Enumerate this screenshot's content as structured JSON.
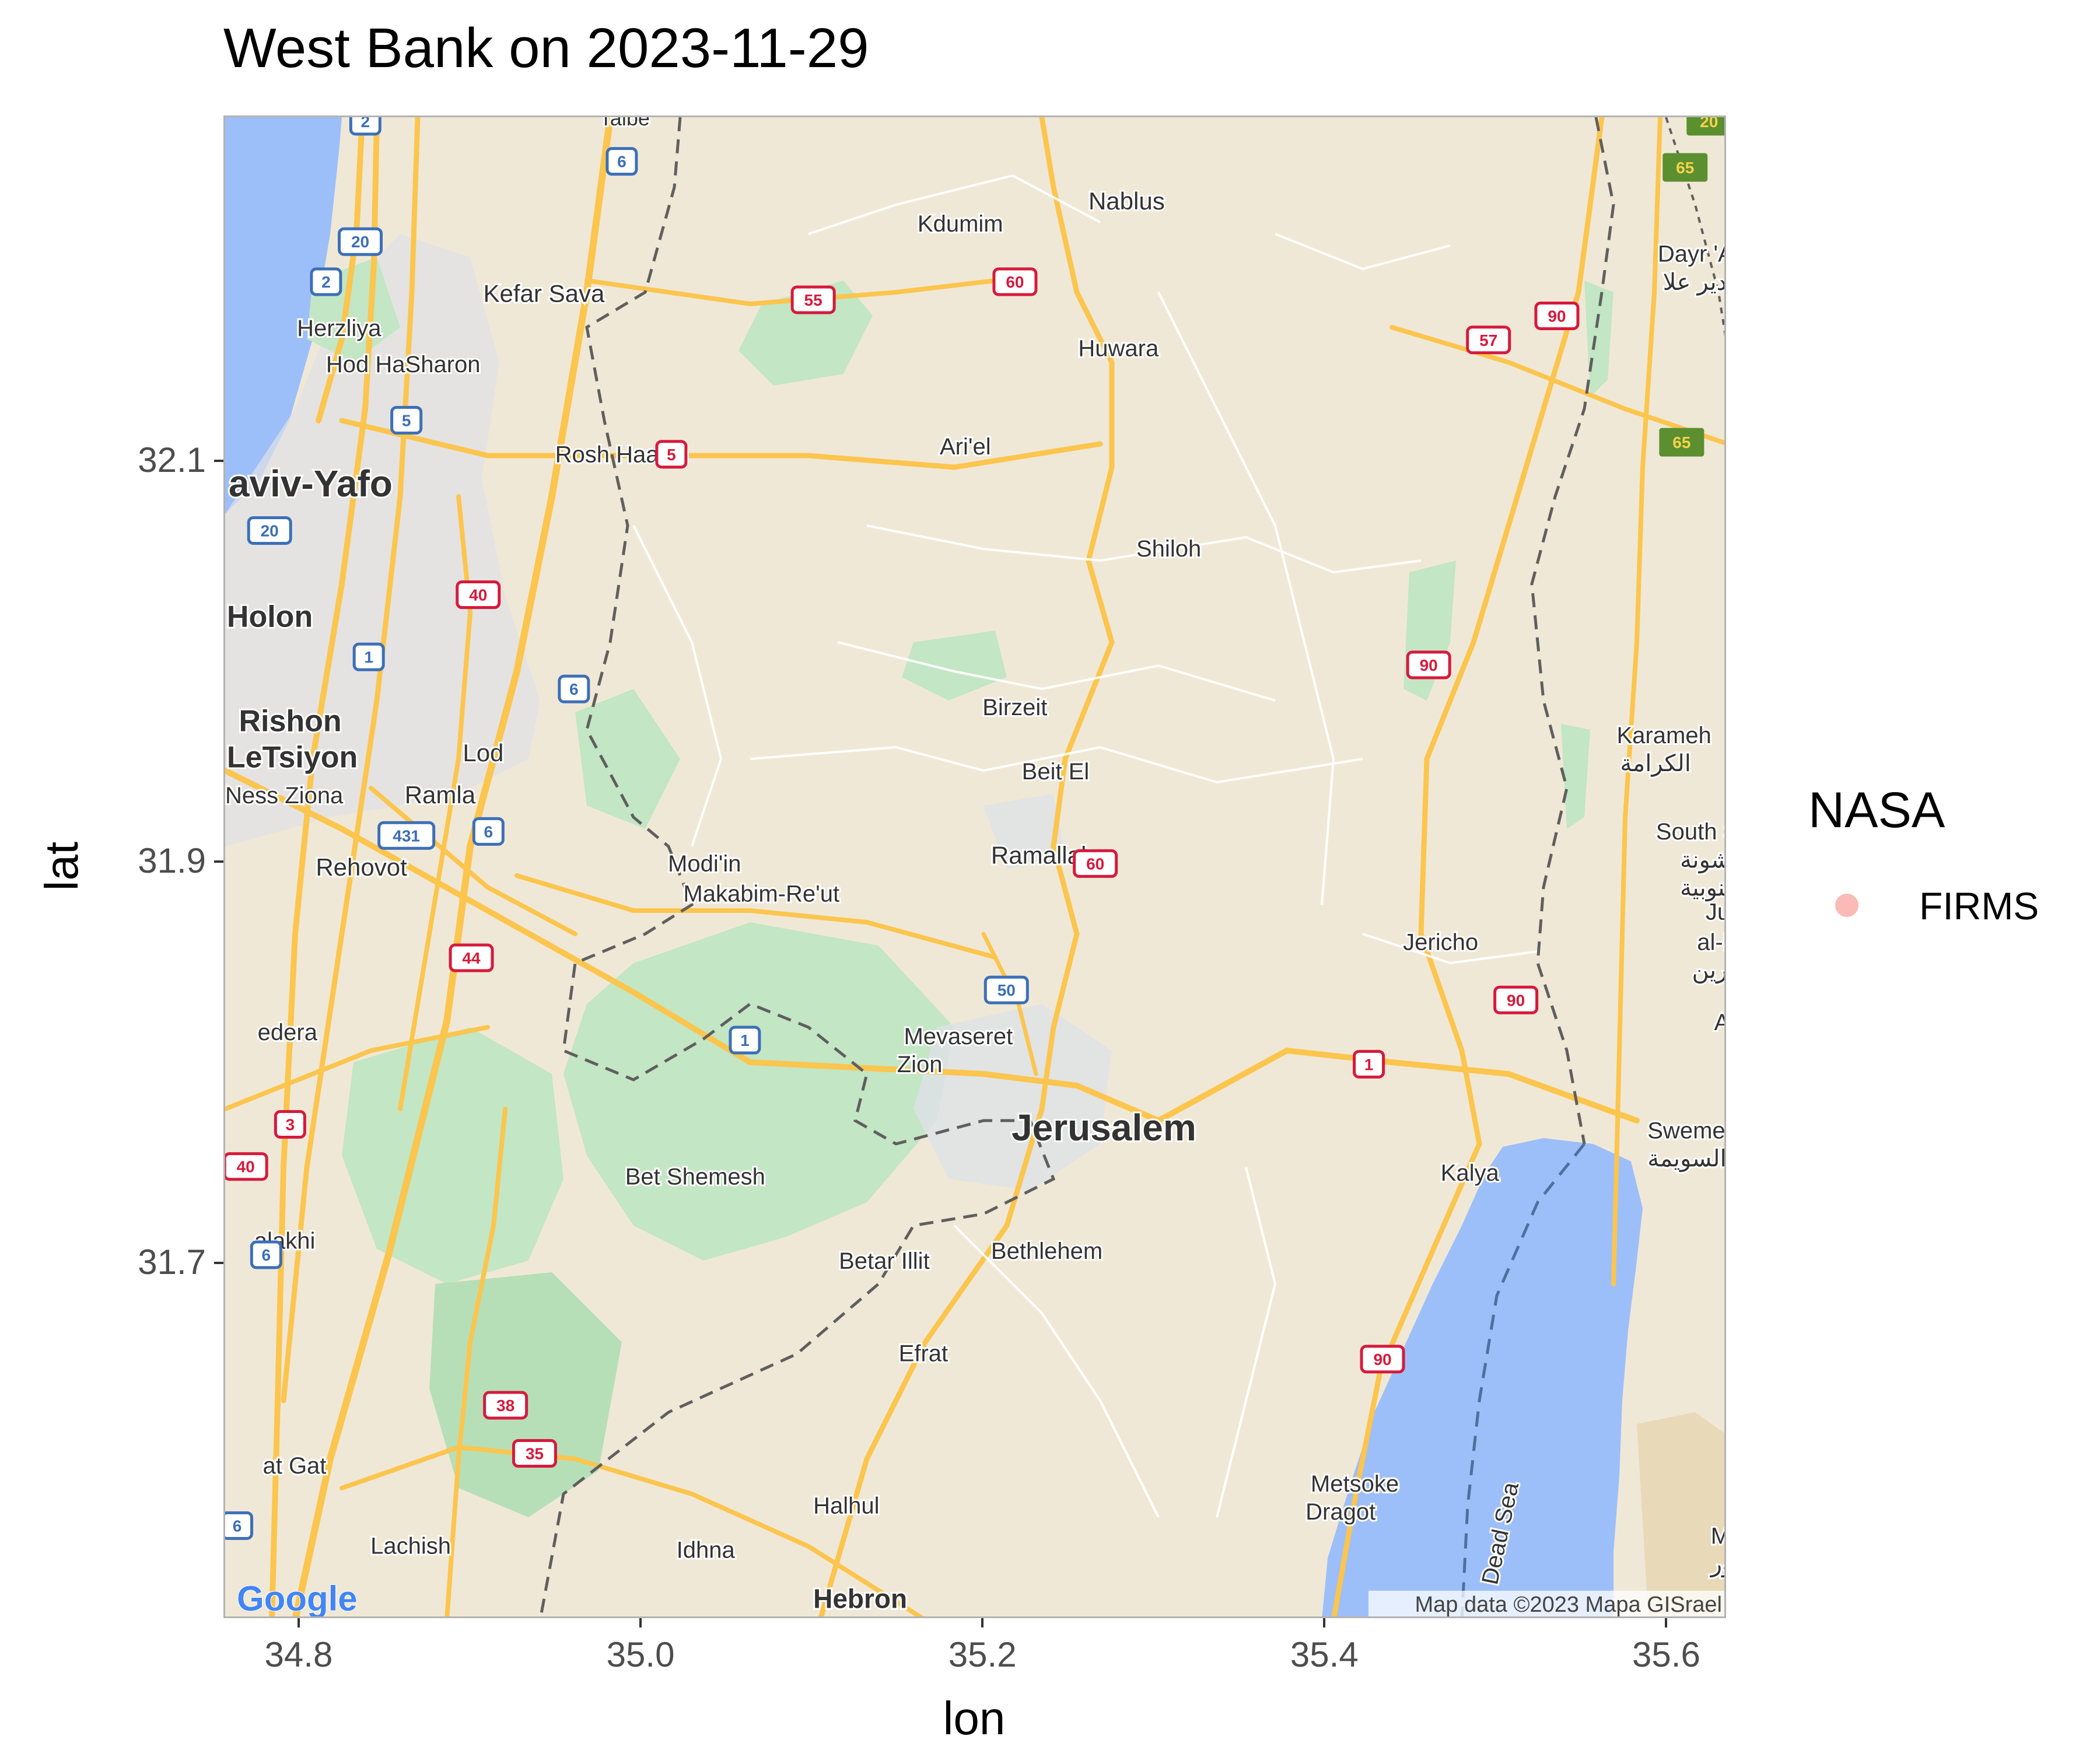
{
  "title": "West Bank on 2023-11-29",
  "axes": {
    "x_title": "lon",
    "y_title": "lat",
    "x_ticks": [
      "34.8",
      "35.0",
      "35.2",
      "35.4",
      "35.6"
    ],
    "x_tick_values": [
      34.8,
      35.0,
      35.2,
      35.4,
      35.6
    ],
    "y_ticks": [
      "32.1",
      "31.9",
      "31.7"
    ],
    "y_tick_values": [
      32.1,
      31.9,
      31.7
    ],
    "xlim": [
      34.756,
      35.635
    ],
    "ylim": [
      31.523,
      32.272
    ]
  },
  "legend": {
    "title": "NASA",
    "items": [
      {
        "label": "FIRMS",
        "color": "#f8766d"
      }
    ]
  },
  "map": {
    "attribution": "Map data ©2023 Mapa GISrael",
    "logo": "Google",
    "colors": {
      "land": "#f0e8d6",
      "water": "#9dbff9",
      "park": "#c3e6c5",
      "road": "#fbc54e",
      "urban": "#dfe1e6"
    },
    "places": [
      {
        "name": "Taibe",
        "lon": 34.975,
        "lat": 32.268,
        "size": 36
      },
      {
        "name": "Kdumim",
        "lon": 35.161,
        "lat": 32.215,
        "size": 40
      },
      {
        "name": "Nablus",
        "lon": 35.261,
        "lat": 32.226,
        "size": 42
      },
      {
        "name": "Dayr 'Al",
        "lon": 35.594,
        "lat": 32.2,
        "size": 40
      },
      {
        "name": "دير علا",
        "lon": 35.597,
        "lat": 32.186,
        "size": 40
      },
      {
        "name": "Kefar Sava",
        "lon": 34.907,
        "lat": 32.18,
        "size": 42
      },
      {
        "name": "Herzliya",
        "lon": 34.798,
        "lat": 32.163,
        "size": 40
      },
      {
        "name": "Huwara",
        "lon": 35.255,
        "lat": 32.153,
        "size": 40
      },
      {
        "name": "Hod HaSharon",
        "lon": 34.815,
        "lat": 32.145,
        "size": 40
      },
      {
        "name": "Rosh Haayin",
        "lon": 34.949,
        "lat": 32.1,
        "size": 40
      },
      {
        "name": "Ari'el",
        "lon": 35.174,
        "lat": 32.104,
        "size": 40
      },
      {
        "name": "aviv-Yafo",
        "lon": 34.758,
        "lat": 32.083,
        "size": 64,
        "bold": true
      },
      {
        "name": "Shiloh",
        "lon": 35.289,
        "lat": 32.053,
        "size": 40
      },
      {
        "name": "Holon",
        "lon": 34.757,
        "lat": 32.018,
        "size": 52,
        "bold": true
      },
      {
        "name": "Birzeit",
        "lon": 35.199,
        "lat": 31.974,
        "size": 40
      },
      {
        "name": "Rishon",
        "lon": 34.764,
        "lat": 31.966,
        "size": 52,
        "bold": true
      },
      {
        "name": "Karameh",
        "lon": 35.57,
        "lat": 31.96,
        "size": 40
      },
      {
        "name": "LeTsiyon",
        "lon": 34.757,
        "lat": 31.948,
        "size": 52,
        "bold": true
      },
      {
        "name": "الكرامة",
        "lon": 35.572,
        "lat": 31.946,
        "size": 40
      },
      {
        "name": "Lod",
        "lon": 34.895,
        "lat": 31.951,
        "size": 42
      },
      {
        "name": "Beit El",
        "lon": 35.222,
        "lat": 31.942,
        "size": 40
      },
      {
        "name": "Ness Ziona",
        "lon": 34.756,
        "lat": 31.93,
        "size": 40
      },
      {
        "name": "Ramla",
        "lon": 34.861,
        "lat": 31.93,
        "size": 42
      },
      {
        "name": "South Shu",
        "lon": 35.593,
        "lat": 31.912,
        "size": 40
      },
      {
        "name": "الشونة",
        "lon": 35.607,
        "lat": 31.898,
        "size": 40
      },
      {
        "name": "الجنوبية",
        "lon": 35.607,
        "lat": 31.884,
        "size": 40
      },
      {
        "name": "Ramallah",
        "lon": 35.204,
        "lat": 31.9,
        "size": 42
      },
      {
        "name": "Rehovot",
        "lon": 34.809,
        "lat": 31.894,
        "size": 42
      },
      {
        "name": "Modi'in",
        "lon": 35.015,
        "lat": 31.896,
        "size": 40
      },
      {
        "name": "Makabim-Re'ut",
        "lon": 35.024,
        "lat": 31.881,
        "size": 40
      },
      {
        "name": "Juw",
        "lon": 35.622,
        "lat": 31.872,
        "size": 40
      },
      {
        "name": "al-Ka",
        "lon": 35.617,
        "lat": 31.857,
        "size": 40
      },
      {
        "name": "الكفرين",
        "lon": 35.614,
        "lat": 31.843,
        "size": 40
      },
      {
        "name": "Jericho",
        "lon": 35.445,
        "lat": 31.857,
        "size": 40
      },
      {
        "name": "Al",
        "lon": 35.627,
        "lat": 31.817,
        "size": 40
      },
      {
        "name": "edera",
        "lon": 34.775,
        "lat": 31.812,
        "size": 40
      },
      {
        "name": "Mevaseret",
        "lon": 35.153,
        "lat": 31.81,
        "size": 40
      },
      {
        "name": "Zion",
        "lon": 35.149,
        "lat": 31.796,
        "size": 40
      },
      {
        "name": "Swemeh",
        "lon": 35.588,
        "lat": 31.763,
        "size": 40
      },
      {
        "name": "السويمة",
        "lon": 35.588,
        "lat": 31.749,
        "size": 40
      },
      {
        "name": "Jerusalem",
        "lon": 35.216,
        "lat": 31.762,
        "size": 64,
        "bold": true
      },
      {
        "name": "Bet Shemesh",
        "lon": 34.99,
        "lat": 31.74,
        "size": 40
      },
      {
        "name": "Kalya",
        "lon": 35.467,
        "lat": 31.742,
        "size": 40
      },
      {
        "name": "alakhi",
        "lon": 34.773,
        "lat": 31.708,
        "size": 40
      },
      {
        "name": "Betar Illit",
        "lon": 35.115,
        "lat": 31.698,
        "size": 40
      },
      {
        "name": "Bethlehem",
        "lon": 35.204,
        "lat": 31.703,
        "size": 40
      },
      {
        "name": "Efrat",
        "lon": 35.15,
        "lat": 31.652,
        "size": 40
      },
      {
        "name": "at Gat",
        "lon": 34.778,
        "lat": 31.596,
        "size": 40
      },
      {
        "name": "Metsoke",
        "lon": 35.391,
        "lat": 31.587,
        "size": 40
      },
      {
        "name": "Dragot",
        "lon": 35.388,
        "lat": 31.573,
        "size": 40
      },
      {
        "name": "Halhul",
        "lon": 35.1,
        "lat": 31.576,
        "size": 40
      },
      {
        "name": "Lachish",
        "lon": 34.841,
        "lat": 31.556,
        "size": 40
      },
      {
        "name": "Mach",
        "lon": 35.625,
        "lat": 31.561,
        "size": 40
      },
      {
        "name": "ماعور",
        "lon": 35.625,
        "lat": 31.547,
        "size": 40
      },
      {
        "name": "Idhna",
        "lon": 35.02,
        "lat": 31.554,
        "size": 40
      },
      {
        "name": "Hebron",
        "lon": 35.1,
        "lat": 31.529,
        "size": 46,
        "bold": true
      },
      {
        "name": "Dead Sea",
        "lon": 35.5,
        "lat": 31.54,
        "size": 40,
        "water": true
      }
    ],
    "shields": [
      {
        "label": "2",
        "lon": 34.838,
        "lat": 32.27,
        "style": "blue"
      },
      {
        "label": "6",
        "lon": 34.988,
        "lat": 32.25,
        "style": "blue"
      },
      {
        "label": "20",
        "lon": 34.835,
        "lat": 32.21,
        "style": "blue"
      },
      {
        "label": "2",
        "lon": 34.815,
        "lat": 32.19,
        "style": "blue"
      },
      {
        "label": "5",
        "lon": 34.862,
        "lat": 32.121,
        "style": "blue"
      },
      {
        "label": "20",
        "lon": 34.782,
        "lat": 32.066,
        "style": "blue"
      },
      {
        "label": "1",
        "lon": 34.84,
        "lat": 32.003,
        "style": "blue"
      },
      {
        "label": "6",
        "lon": 34.96,
        "lat": 31.987,
        "style": "blue"
      },
      {
        "label": "431",
        "lon": 34.862,
        "lat": 31.914,
        "style": "blue"
      },
      {
        "label": "6",
        "lon": 34.91,
        "lat": 31.916,
        "style": "blue"
      },
      {
        "label": "50",
        "lon": 35.213,
        "lat": 31.837,
        "style": "blue"
      },
      {
        "label": "1",
        "lon": 35.06,
        "lat": 31.812,
        "style": "blue"
      },
      {
        "label": "6",
        "lon": 34.78,
        "lat": 31.705,
        "style": "blue"
      },
      {
        "label": "6",
        "lon": 34.763,
        "lat": 31.57,
        "style": "blue"
      },
      {
        "label": "55",
        "lon": 35.1,
        "lat": 32.181,
        "style": "red"
      },
      {
        "label": "60",
        "lon": 35.218,
        "lat": 32.19,
        "style": "red"
      },
      {
        "label": "90",
        "lon": 35.535,
        "lat": 32.173,
        "style": "red"
      },
      {
        "label": "57",
        "lon": 35.495,
        "lat": 32.161,
        "style": "red"
      },
      {
        "label": "5",
        "lon": 35.017,
        "lat": 32.104,
        "style": "red"
      },
      {
        "label": "40",
        "lon": 34.904,
        "lat": 32.034,
        "style": "red"
      },
      {
        "label": "90",
        "lon": 35.46,
        "lat": 31.999,
        "style": "red"
      },
      {
        "label": "60",
        "lon": 35.265,
        "lat": 31.9,
        "style": "red"
      },
      {
        "label": "44",
        "lon": 34.9,
        "lat": 31.853,
        "style": "red"
      },
      {
        "label": "90",
        "lon": 35.511,
        "lat": 31.832,
        "style": "red"
      },
      {
        "label": "1",
        "lon": 35.425,
        "lat": 31.8,
        "style": "red"
      },
      {
        "label": "3",
        "lon": 34.794,
        "lat": 31.77,
        "style": "red"
      },
      {
        "label": "40",
        "lon": 34.768,
        "lat": 31.749,
        "style": "red"
      },
      {
        "label": "90",
        "lon": 35.433,
        "lat": 31.653,
        "style": "red"
      },
      {
        "label": "38",
        "lon": 34.92,
        "lat": 31.63,
        "style": "red"
      },
      {
        "label": "35",
        "lon": 34.937,
        "lat": 31.606,
        "style": "red"
      },
      {
        "label": "20",
        "lon": 35.624,
        "lat": 32.27,
        "style": "green"
      },
      {
        "label": "65",
        "lon": 35.61,
        "lat": 32.247,
        "style": "green"
      },
      {
        "label": "65",
        "lon": 35.608,
        "lat": 32.11,
        "style": "green"
      }
    ]
  }
}
